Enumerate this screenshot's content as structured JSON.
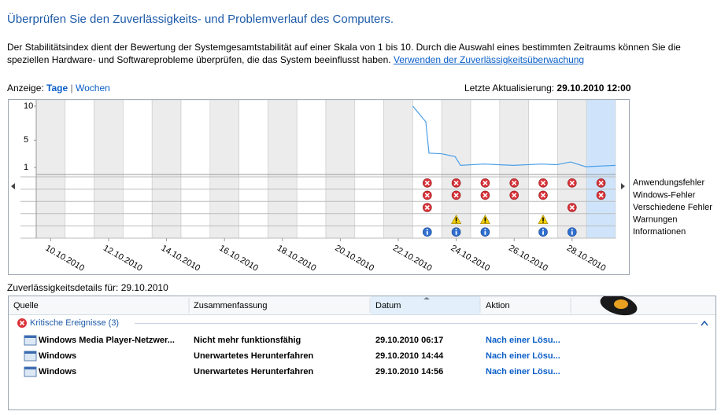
{
  "header": {
    "title": "Überprüfen Sie den Zuverlässigkeits- und Problemverlauf des Computers.",
    "description": "Der Stabilitätsindex dient der Bewertung der Systemgesamtstabilität auf einer Skala von 1 bis 10. Durch die Auswahl eines bestimmten Zeitraums können Sie die speziellen Hardware- und Softwareprobleme überprüfen, die das System beeinflusst haben.",
    "link": "Verwenden der Zuverlässigkeitsüberwachung"
  },
  "view": {
    "label": "Anzeige:",
    "options": [
      "Tage",
      "Wochen"
    ],
    "separator": "|"
  },
  "last_update": {
    "label": "Letzte Aktualisierung:",
    "value": "29.10.2010 12:00"
  },
  "chart": {
    "ylim": [
      1,
      10
    ],
    "yticks": [
      1,
      5,
      10
    ],
    "days": 20,
    "x": [
      13.0,
      13.45,
      13.56,
      14.0,
      14.46,
      14.65,
      15.46,
      16.47,
      17.45,
      17.96,
      18.45,
      18.97,
      20.0
    ],
    "values": [
      10,
      7.7,
      3.1,
      3.0,
      2.6,
      1.3,
      1.5,
      1.3,
      1.5,
      1.4,
      1.8,
      1.1,
      1.3
    ],
    "color": "#4a9ee8",
    "dates": [
      "10.10.2010",
      "12.10.2010",
      "14.10.2010",
      "16.10.2010",
      "18.10.2010",
      "20.10.2010",
      "22.10.2010",
      "24.10.2010",
      "26.10.2010",
      "28.10.2010"
    ],
    "event_rows": [
      {
        "label": "Anwendungsfehler",
        "icon": "error",
        "days": [
          13,
          14,
          15,
          16,
          17,
          18,
          19
        ]
      },
      {
        "label": "Windows-Fehler",
        "icon": "error",
        "days": [
          13,
          14,
          15,
          16,
          17,
          19
        ]
      },
      {
        "label": "Verschiedene Fehler",
        "icon": "error",
        "days": [
          13,
          18
        ]
      },
      {
        "label": "Warnungen",
        "icon": "warning",
        "days": [
          14,
          15,
          17
        ]
      },
      {
        "label": "Informationen",
        "icon": "info",
        "days": [
          13,
          14,
          15,
          17,
          18
        ]
      }
    ]
  },
  "details": {
    "label": "Zuverlässigkeitsdetails für: 29.10.2010",
    "columns": [
      "Quelle",
      "Zusammenfassung",
      "Datum",
      "Aktion"
    ],
    "group": "Kritische Ereignisse (3)",
    "rows": [
      [
        "Windows Media Player-Netzwer...",
        "Nicht mehr funktionsfähig",
        "29.10.2010 06:17",
        "Nach einer Lösu..."
      ],
      [
        "Windows",
        "Unerwartetes Herunterfahren",
        "29.10.2010 14:44",
        "Nach einer Lösu..."
      ],
      [
        "Windows",
        "Unerwartetes Herunterfahren",
        "29.10.2010 14:56",
        "Nach einer Lösu..."
      ]
    ]
  }
}
